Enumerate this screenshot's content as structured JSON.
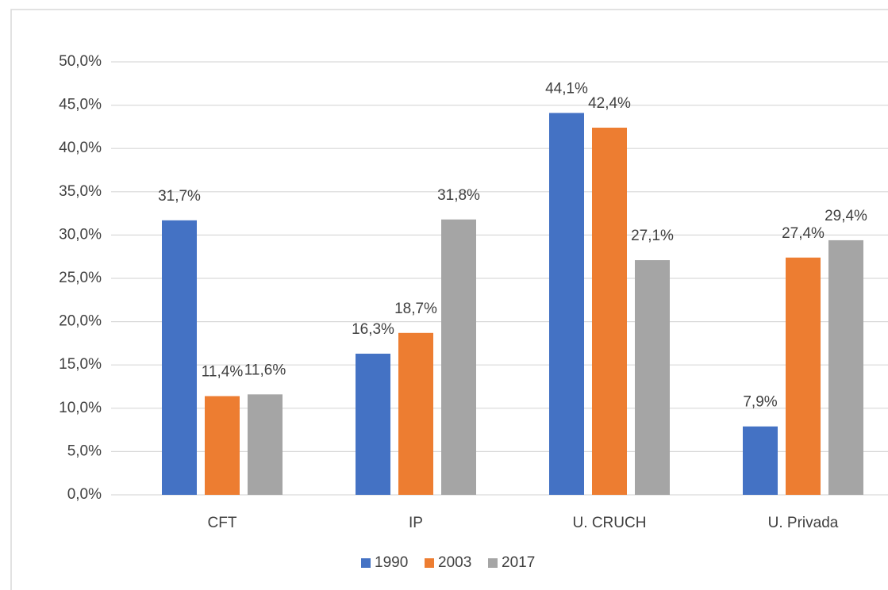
{
  "chart_data": {
    "type": "bar",
    "categories": [
      "CFT",
      "IP",
      "U. CRUCH",
      "U. Privada"
    ],
    "series": [
      {
        "name": "1990",
        "color": "#4472c4",
        "values": [
          31.7,
          16.3,
          44.1,
          7.9
        ],
        "value_labels": [
          "31,7%",
          "16,3%",
          "44,1%",
          "7,9%"
        ]
      },
      {
        "name": "2003",
        "color": "#ed7d31",
        "values": [
          11.4,
          18.7,
          42.4,
          27.4
        ],
        "value_labels": [
          "11,4%",
          "18,7%",
          "42,4%",
          "27,4%"
        ]
      },
      {
        "name": "2017",
        "color": "#a5a5a5",
        "values": [
          11.6,
          31.8,
          27.1,
          29.4
        ],
        "value_labels": [
          "11,6%",
          "31,8%",
          "27,1%",
          "29,4%"
        ]
      }
    ],
    "ylim": [
      0,
      50
    ],
    "yticks": [
      {
        "value": 0,
        "label": "0,0%"
      },
      {
        "value": 5,
        "label": "5,0%"
      },
      {
        "value": 10,
        "label": "10,0%"
      },
      {
        "value": 15,
        "label": "15,0%"
      },
      {
        "value": 20,
        "label": "20,0%"
      },
      {
        "value": 25,
        "label": "25,0%"
      },
      {
        "value": 30,
        "label": "30,0%"
      },
      {
        "value": 35,
        "label": "35,0%"
      },
      {
        "value": 40,
        "label": "40,0%"
      },
      {
        "value": 45,
        "label": "45,0%"
      },
      {
        "value": 50,
        "label": "50,0%"
      }
    ],
    "grid": true,
    "legend": "bottom"
  }
}
